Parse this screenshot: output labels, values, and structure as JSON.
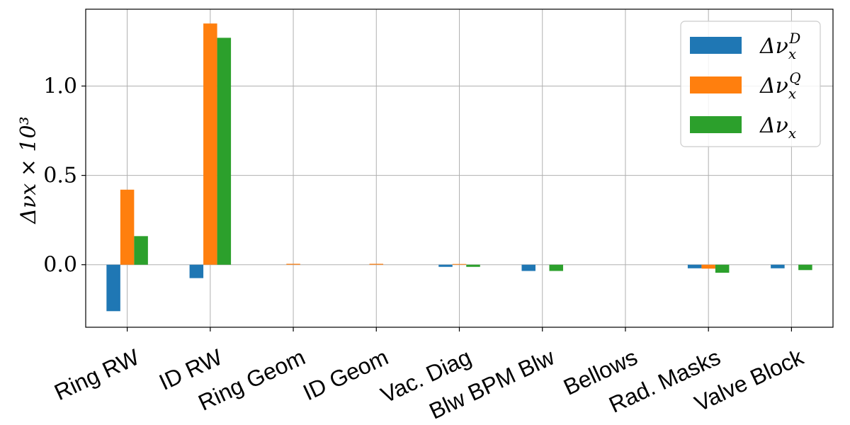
{
  "chart_data": {
    "type": "bar",
    "categories": [
      "Ring RW",
      "ID RW",
      "Ring Geom",
      "ID Geom",
      "Vac.  Diag",
      "Blw BPM Blw",
      "Bellows",
      "Rad. Masks",
      "Valve Block"
    ],
    "series": [
      {
        "name": "Δν_x^D",
        "legend_label": "Δνx D",
        "color": "#1f77b4",
        "values": [
          -0.26,
          -0.075,
          0.0,
          0.0,
          -0.012,
          -0.035,
          0.0,
          -0.02,
          -0.02
        ]
      },
      {
        "name": "Δν_x^Q",
        "legend_label": "Δνx Q",
        "color": "#ff7f0e",
        "values": [
          0.42,
          1.35,
          0.005,
          0.005,
          0.004,
          0.0,
          0.0,
          -0.022,
          0.0
        ]
      },
      {
        "name": "Δν_x",
        "legend_label": "Δνx",
        "color": "#2ca02c",
        "values": [
          0.16,
          1.27,
          0.0,
          0.0,
          -0.012,
          -0.035,
          0.0,
          -0.045,
          -0.03
        ]
      }
    ],
    "ylabel": "Δνx × 10³",
    "xlabel": "",
    "title": "",
    "ylim": [
      -0.35,
      1.43
    ],
    "yticks": [
      0.0,
      0.5,
      1.0
    ],
    "ytick_labels": [
      "0.0",
      "0.5",
      "1.0"
    ],
    "grid": true,
    "legend_position": "top-right"
  }
}
